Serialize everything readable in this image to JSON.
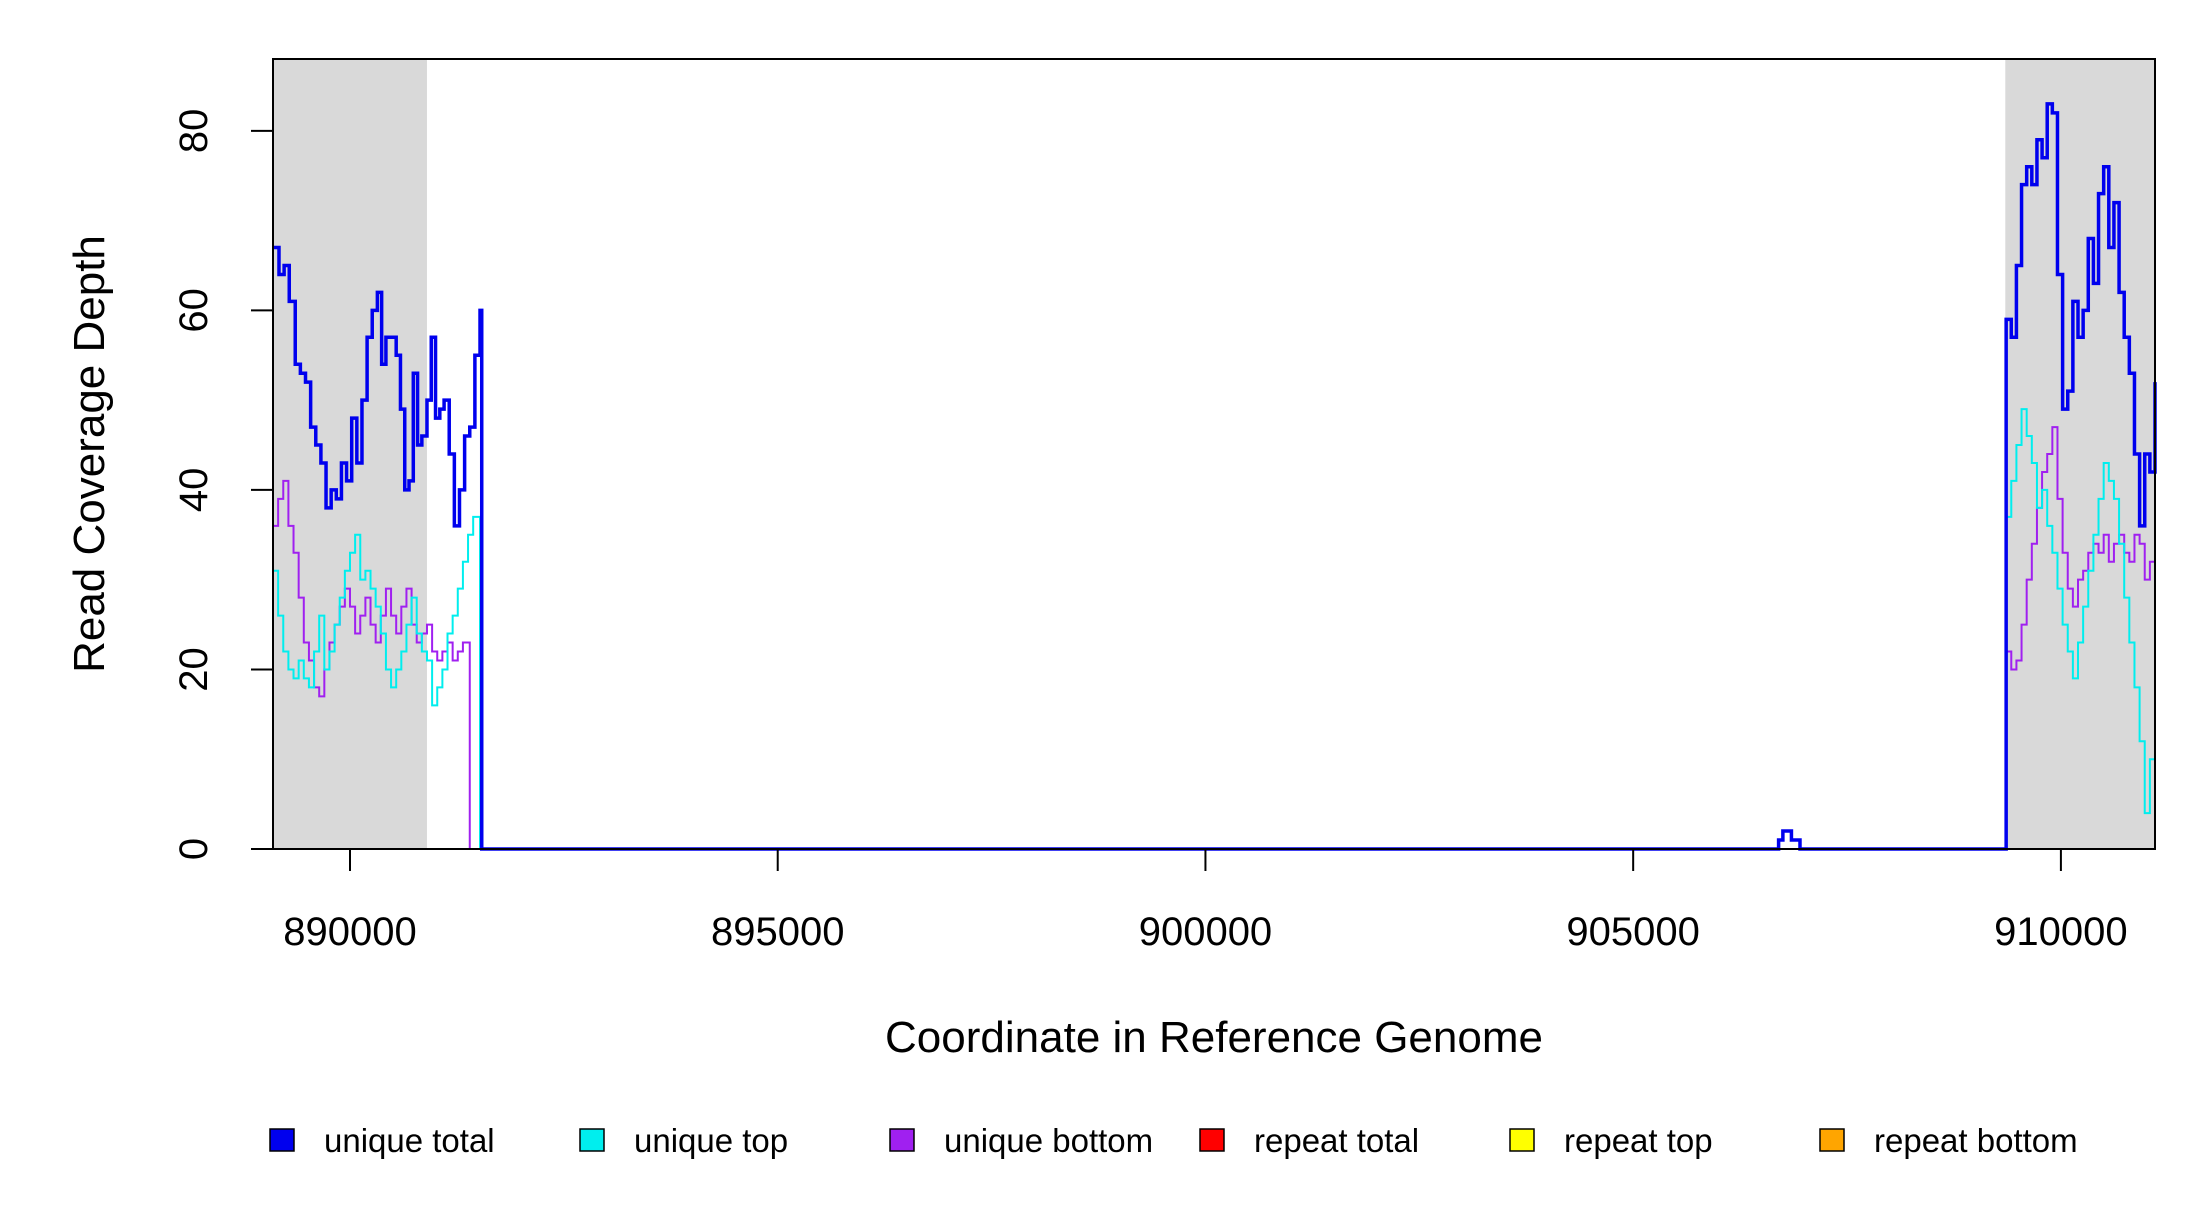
{
  "chart_data": {
    "type": "line",
    "xlabel": "Coordinate in Reference Genome",
    "ylabel": "Read Coverage Depth",
    "xlim": [
      889100,
      911100
    ],
    "ylim": [
      0,
      88
    ],
    "x_ticks": [
      890000,
      895000,
      900000,
      905000,
      910000
    ],
    "x_tick_labels": [
      "890000",
      "895000",
      "900000",
      "905000",
      "910000"
    ],
    "y_ticks": [
      0,
      20,
      40,
      60,
      80
    ],
    "y_tick_labels": [
      "0",
      "20",
      "40",
      "60",
      "80"
    ],
    "shaded_regions": [
      [
        889100,
        890900
      ],
      [
        909350,
        911100
      ]
    ],
    "shade_color": "#d9d9d9",
    "grid": false,
    "legend_position": "bottom",
    "series": [
      {
        "name": "unique total",
        "color": "#0000ee",
        "points": [
          [
            889100,
            67
          ],
          [
            889170,
            64
          ],
          [
            889230,
            65
          ],
          [
            889290,
            61
          ],
          [
            889360,
            54
          ],
          [
            889420,
            53
          ],
          [
            889480,
            52
          ],
          [
            889540,
            47
          ],
          [
            889600,
            45
          ],
          [
            889660,
            43
          ],
          [
            889720,
            38
          ],
          [
            889780,
            40
          ],
          [
            889840,
            39
          ],
          [
            889900,
            43
          ],
          [
            889960,
            41
          ],
          [
            890020,
            48
          ],
          [
            890080,
            43
          ],
          [
            890140,
            50
          ],
          [
            890200,
            57
          ],
          [
            890260,
            60
          ],
          [
            890320,
            62
          ],
          [
            890370,
            54
          ],
          [
            890420,
            57
          ],
          [
            890480,
            57
          ],
          [
            890540,
            55
          ],
          [
            890590,
            49
          ],
          [
            890640,
            40
          ],
          [
            890690,
            41
          ],
          [
            890740,
            53
          ],
          [
            890790,
            45
          ],
          [
            890840,
            46
          ],
          [
            890900,
            50
          ],
          [
            890950,
            57
          ],
          [
            891000,
            48
          ],
          [
            891050,
            49
          ],
          [
            891100,
            50
          ],
          [
            891160,
            44
          ],
          [
            891220,
            36
          ],
          [
            891280,
            40
          ],
          [
            891340,
            46
          ],
          [
            891400,
            47
          ],
          [
            891460,
            55
          ],
          [
            891520,
            60
          ],
          [
            891540,
            0
          ],
          [
            906650,
            0
          ],
          [
            906700,
            1
          ],
          [
            906750,
            2
          ],
          [
            906850,
            1
          ],
          [
            906950,
            0
          ],
          [
            909350,
            0
          ],
          [
            909360,
            59
          ],
          [
            909420,
            57
          ],
          [
            909480,
            65
          ],
          [
            909540,
            74
          ],
          [
            909600,
            76
          ],
          [
            909660,
            74
          ],
          [
            909720,
            79
          ],
          [
            909780,
            77
          ],
          [
            909840,
            83
          ],
          [
            909900,
            82
          ],
          [
            909960,
            64
          ],
          [
            910020,
            49
          ],
          [
            910080,
            51
          ],
          [
            910140,
            61
          ],
          [
            910200,
            57
          ],
          [
            910260,
            60
          ],
          [
            910320,
            68
          ],
          [
            910380,
            63
          ],
          [
            910440,
            73
          ],
          [
            910500,
            76
          ],
          [
            910560,
            67
          ],
          [
            910620,
            72
          ],
          [
            910680,
            62
          ],
          [
            910740,
            57
          ],
          [
            910800,
            53
          ],
          [
            910860,
            44
          ],
          [
            910920,
            36
          ],
          [
            910980,
            44
          ],
          [
            911040,
            42
          ],
          [
            911100,
            52
          ]
        ]
      },
      {
        "name": "unique top",
        "color": "#00eeee",
        "points": [
          [
            889100,
            31
          ],
          [
            889160,
            26
          ],
          [
            889220,
            22
          ],
          [
            889280,
            20
          ],
          [
            889340,
            19
          ],
          [
            889400,
            21
          ],
          [
            889460,
            19
          ],
          [
            889520,
            18
          ],
          [
            889580,
            22
          ],
          [
            889640,
            26
          ],
          [
            889700,
            20
          ],
          [
            889760,
            22
          ],
          [
            889820,
            25
          ],
          [
            889880,
            28
          ],
          [
            889940,
            31
          ],
          [
            890000,
            33
          ],
          [
            890060,
            35
          ],
          [
            890120,
            30
          ],
          [
            890180,
            31
          ],
          [
            890240,
            29
          ],
          [
            890300,
            27
          ],
          [
            890360,
            24
          ],
          [
            890420,
            20
          ],
          [
            890480,
            18
          ],
          [
            890540,
            20
          ],
          [
            890600,
            22
          ],
          [
            890660,
            25
          ],
          [
            890720,
            28
          ],
          [
            890780,
            24
          ],
          [
            890840,
            22
          ],
          [
            890900,
            21
          ],
          [
            890960,
            16
          ],
          [
            891020,
            18
          ],
          [
            891080,
            20
          ],
          [
            891140,
            24
          ],
          [
            891200,
            26
          ],
          [
            891260,
            29
          ],
          [
            891320,
            32
          ],
          [
            891380,
            35
          ],
          [
            891440,
            37
          ],
          [
            891520,
            0
          ],
          [
            909350,
            0
          ],
          [
            909360,
            37
          ],
          [
            909420,
            41
          ],
          [
            909480,
            45
          ],
          [
            909540,
            49
          ],
          [
            909600,
            46
          ],
          [
            909660,
            43
          ],
          [
            909720,
            38
          ],
          [
            909780,
            40
          ],
          [
            909840,
            36
          ],
          [
            909900,
            33
          ],
          [
            909960,
            29
          ],
          [
            910020,
            25
          ],
          [
            910080,
            22
          ],
          [
            910140,
            19
          ],
          [
            910200,
            23
          ],
          [
            910260,
            27
          ],
          [
            910320,
            31
          ],
          [
            910380,
            35
          ],
          [
            910440,
            39
          ],
          [
            910500,
            43
          ],
          [
            910560,
            41
          ],
          [
            910620,
            39
          ],
          [
            910680,
            34
          ],
          [
            910740,
            28
          ],
          [
            910800,
            23
          ],
          [
            910860,
            18
          ],
          [
            910920,
            12
          ],
          [
            910980,
            4
          ],
          [
            911040,
            10
          ],
          [
            911100,
            14
          ]
        ]
      },
      {
        "name": "unique bottom",
        "color": "#a020f0",
        "points": [
          [
            889100,
            36
          ],
          [
            889160,
            39
          ],
          [
            889220,
            41
          ],
          [
            889280,
            36
          ],
          [
            889340,
            33
          ],
          [
            889400,
            28
          ],
          [
            889460,
            23
          ],
          [
            889520,
            21
          ],
          [
            889580,
            18
          ],
          [
            889640,
            17
          ],
          [
            889700,
            20
          ],
          [
            889760,
            23
          ],
          [
            889820,
            25
          ],
          [
            889880,
            27
          ],
          [
            889940,
            29
          ],
          [
            890000,
            27
          ],
          [
            890060,
            24
          ],
          [
            890120,
            26
          ],
          [
            890180,
            28
          ],
          [
            890240,
            25
          ],
          [
            890300,
            23
          ],
          [
            890360,
            26
          ],
          [
            890420,
            29
          ],
          [
            890480,
            26
          ],
          [
            890540,
            24
          ],
          [
            890600,
            27
          ],
          [
            890660,
            29
          ],
          [
            890720,
            25
          ],
          [
            890780,
            23
          ],
          [
            890840,
            24
          ],
          [
            890900,
            25
          ],
          [
            890960,
            22
          ],
          [
            891020,
            21
          ],
          [
            891080,
            22
          ],
          [
            891140,
            23
          ],
          [
            891200,
            21
          ],
          [
            891260,
            22
          ],
          [
            891320,
            23
          ],
          [
            891400,
            0
          ],
          [
            909350,
            0
          ],
          [
            909360,
            22
          ],
          [
            909420,
            20
          ],
          [
            909480,
            21
          ],
          [
            909540,
            25
          ],
          [
            909600,
            30
          ],
          [
            909660,
            34
          ],
          [
            909720,
            38
          ],
          [
            909780,
            42
          ],
          [
            909840,
            44
          ],
          [
            909900,
            47
          ],
          [
            909960,
            39
          ],
          [
            910020,
            33
          ],
          [
            910080,
            29
          ],
          [
            910140,
            27
          ],
          [
            910200,
            30
          ],
          [
            910260,
            31
          ],
          [
            910320,
            33
          ],
          [
            910380,
            34
          ],
          [
            910440,
            33
          ],
          [
            910500,
            35
          ],
          [
            910560,
            32
          ],
          [
            910620,
            34
          ],
          [
            910680,
            35
          ],
          [
            910740,
            33
          ],
          [
            910800,
            32
          ],
          [
            910860,
            35
          ],
          [
            910920,
            34
          ],
          [
            910980,
            30
          ],
          [
            911040,
            32
          ],
          [
            911100,
            32
          ]
        ]
      },
      {
        "name": "repeat total",
        "color": "#ff0000",
        "points": [
          [
            889100,
            0
          ],
          [
            911100,
            0
          ]
        ]
      },
      {
        "name": "repeat top",
        "color": "#ffff00",
        "points": [
          [
            889100,
            0
          ],
          [
            911100,
            0
          ]
        ]
      },
      {
        "name": "repeat bottom",
        "color": "#ffa500",
        "points": [
          [
            889100,
            0
          ],
          [
            911100,
            0
          ]
        ]
      }
    ]
  }
}
